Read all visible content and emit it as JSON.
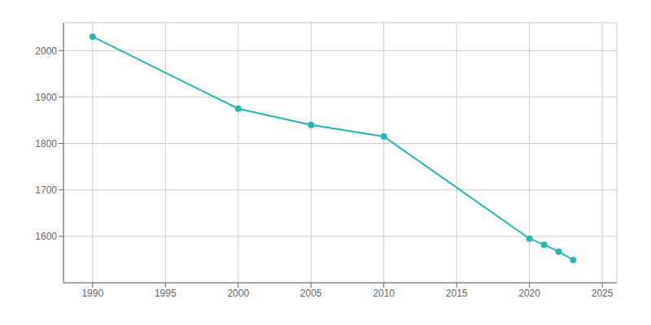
{
  "chart_data": {
    "type": "line",
    "x": [
      1990,
      2000,
      2005,
      2010,
      2020,
      2021,
      2022,
      2023
    ],
    "values": [
      2030,
      1875,
      1840,
      1815,
      1595,
      1582,
      1567,
      1549
    ],
    "color": "#2ab5b5",
    "marker": "o",
    "xlim": [
      1988,
      2026
    ],
    "ylim": [
      1500,
      2060
    ],
    "xticks": [
      1990,
      1995,
      2000,
      2005,
      2010,
      2015,
      2020,
      2025
    ],
    "yticks": [
      1600,
      1700,
      1800,
      1900,
      2000
    ],
    "grid": true
  }
}
